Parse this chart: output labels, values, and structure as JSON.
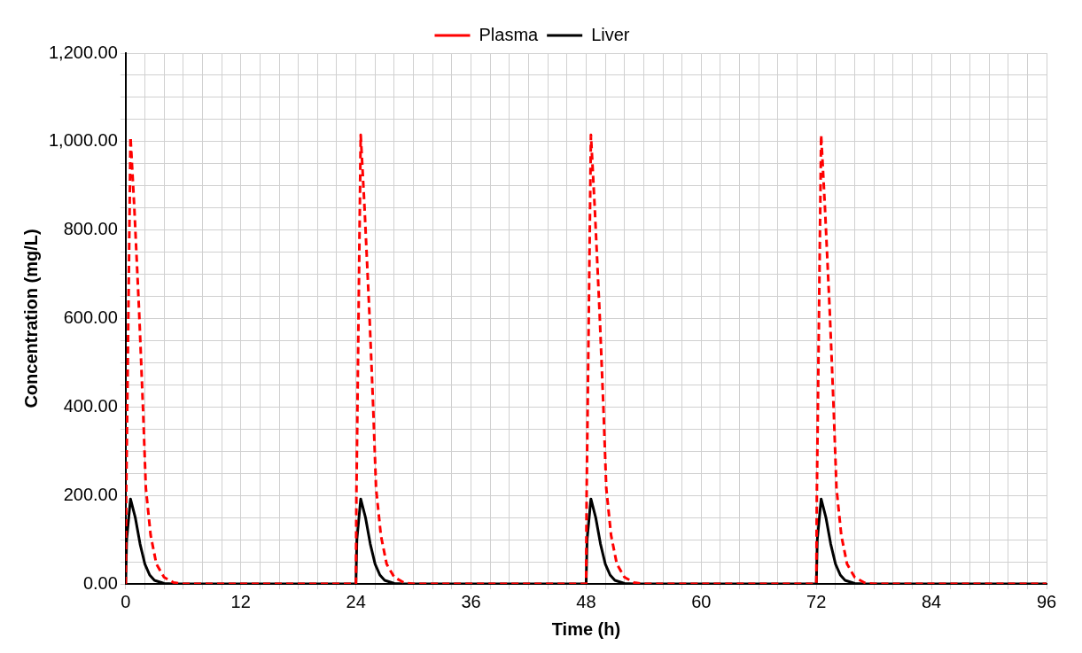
{
  "chart_data": {
    "type": "line",
    "xlabel": "Time (h)",
    "ylabel": "Concentration (mg/L)",
    "legend": "top",
    "grid": true,
    "marker": "none",
    "xlim": [
      0,
      96
    ],
    "ylim": [
      0,
      1200
    ],
    "xticks": [
      0,
      {
        "value": 2,
        "label": null
      },
      {
        "value": 4,
        "label": null
      },
      {
        "value": 6,
        "label": null
      },
      {
        "value": 8,
        "label": null
      },
      {
        "value": 10,
        "label": null
      },
      12,
      {
        "value": 14,
        "label": null
      },
      {
        "value": 16,
        "label": null
      },
      {
        "value": 18,
        "label": null
      },
      {
        "value": 20,
        "label": null
      },
      {
        "value": 22,
        "label": null
      },
      24,
      {
        "value": 26,
        "label": null
      },
      {
        "value": 28,
        "label": null
      },
      {
        "value": 30,
        "label": null
      },
      {
        "value": 32,
        "label": null
      },
      {
        "value": 34,
        "label": null
      },
      36,
      {
        "value": 38,
        "label": null
      },
      {
        "value": 40,
        "label": null
      },
      {
        "value": 42,
        "label": null
      },
      {
        "value": 44,
        "label": null
      },
      {
        "value": 46,
        "label": null
      },
      48,
      {
        "value": 50,
        "label": null
      },
      {
        "value": 52,
        "label": null
      },
      {
        "value": 54,
        "label": null
      },
      {
        "value": 56,
        "label": null
      },
      {
        "value": 58,
        "label": null
      },
      60,
      {
        "value": 62,
        "label": null
      },
      {
        "value": 64,
        "label": null
      },
      {
        "value": 66,
        "label": null
      },
      {
        "value": 68,
        "label": null
      },
      {
        "value": 70,
        "label": null
      },
      72,
      {
        "value": 74,
        "label": null
      },
      {
        "value": 76,
        "label": null
      },
      {
        "value": 78,
        "label": null
      },
      {
        "value": 80,
        "label": null
      },
      {
        "value": 82,
        "label": null
      },
      84,
      {
        "value": 86,
        "label": null
      },
      {
        "value": 88,
        "label": null
      },
      {
        "value": 90,
        "label": null
      },
      {
        "value": 92,
        "label": null
      },
      {
        "value": 94,
        "label": null
      },
      96
    ],
    "yticks": [
      {
        "value": 0,
        "label": "0.00"
      },
      {
        "value": 50,
        "label": null
      },
      {
        "value": 100,
        "label": null
      },
      {
        "value": 150,
        "label": null
      },
      {
        "value": 200,
        "label": "200.00"
      },
      {
        "value": 250,
        "label": null
      },
      {
        "value": 300,
        "label": null
      },
      {
        "value": 350,
        "label": null
      },
      {
        "value": 400,
        "label": "400.00"
      },
      {
        "value": 450,
        "label": null
      },
      {
        "value": 500,
        "label": null
      },
      {
        "value": 550,
        "label": null
      },
      {
        "value": 600,
        "label": "600.00"
      },
      {
        "value": 650,
        "label": null
      },
      {
        "value": 700,
        "label": null
      },
      {
        "value": 750,
        "label": null
      },
      {
        "value": 800,
        "label": "800.00"
      },
      {
        "value": 850,
        "label": null
      },
      {
        "value": 900,
        "label": null
      },
      {
        "value": 950,
        "label": null
      },
      {
        "value": 1000,
        "label": "1,000.00"
      },
      {
        "value": 1050,
        "label": null
      },
      {
        "value": 1100,
        "label": null
      },
      {
        "value": 1150,
        "label": null
      },
      {
        "value": 1200,
        "label": "1,200.00"
      }
    ],
    "series": [
      {
        "name": "Plasma",
        "color": "#ff0000",
        "line_style": "dashed",
        "x": [
          0,
          0.05,
          0.5,
          0.9,
          1.4,
          1.8,
          2.1,
          2.6,
          3.2,
          4,
          5,
          6,
          24,
          24.05,
          24.5,
          24.9,
          25.4,
          25.8,
          26.1,
          26.6,
          27.2,
          28,
          29,
          30,
          48,
          48.05,
          48.5,
          48.9,
          49.4,
          49.8,
          50.1,
          50.6,
          51.2,
          52,
          53,
          54,
          72,
          72.05,
          72.5,
          72.9,
          73.4,
          73.8,
          74.1,
          74.6,
          75.2,
          76,
          77,
          78,
          96
        ],
        "values": [
          0,
          200,
          1010,
          850,
          615,
          400,
          216,
          110,
          45,
          15,
          3,
          0,
          0,
          200,
          1015,
          850,
          615,
          400,
          216,
          110,
          45,
          15,
          3,
          0,
          0,
          200,
          1015,
          850,
          615,
          400,
          216,
          110,
          45,
          15,
          3,
          0,
          0,
          200,
          1015,
          850,
          615,
          400,
          216,
          110,
          45,
          15,
          3,
          0,
          0
        ]
      },
      {
        "name": "Liver",
        "color": "#000000",
        "line_style": "solid",
        "x": [
          0,
          0.1,
          0.5,
          1,
          1.5,
          2,
          2.5,
          3,
          4,
          5,
          24,
          24.1,
          24.5,
          25,
          25.5,
          26,
          26.5,
          27,
          28,
          29,
          48,
          48.1,
          48.5,
          49,
          49.5,
          50,
          50.5,
          51,
          52,
          53,
          72,
          72.1,
          72.5,
          73,
          73.5,
          74,
          74.5,
          75,
          76,
          77,
          96
        ],
        "values": [
          0,
          100,
          192,
          150,
          90,
          45,
          20,
          8,
          1,
          0,
          0,
          100,
          192,
          150,
          90,
          45,
          20,
          8,
          1,
          0,
          0,
          100,
          192,
          150,
          90,
          45,
          20,
          8,
          1,
          0,
          0,
          100,
          192,
          150,
          90,
          45,
          20,
          8,
          1,
          0,
          0
        ]
      }
    ]
  }
}
